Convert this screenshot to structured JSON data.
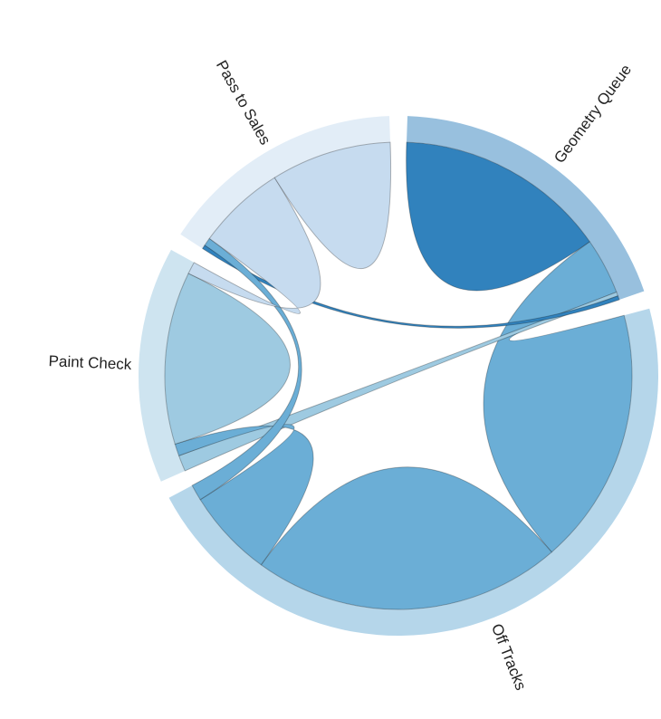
{
  "chart_data": {
    "type": "chord",
    "labels": [
      "Geometry Queue",
      "Off Tracks",
      "Paint Check",
      "Pass to Sales"
    ],
    "colors": [
      "#3182bd",
      "#6baed6",
      "#9ecae1",
      "#c6dbef"
    ],
    "matrix": [
      [
        53,
        14,
        1,
        1
      ],
      [
        64,
        77,
        22,
        4
      ],
      [
        4,
        3,
        43,
        3
      ],
      [
        1,
        2,
        22,
        30
      ]
    ]
  }
}
